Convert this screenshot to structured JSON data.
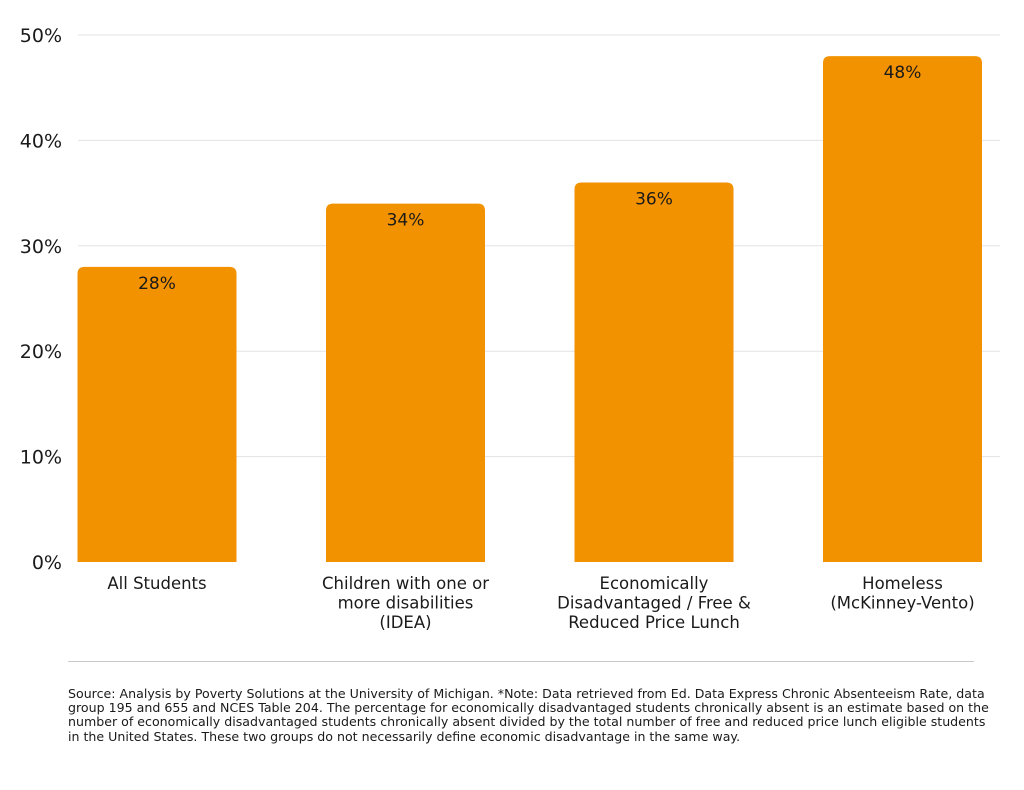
{
  "chart_data": {
    "type": "bar",
    "categories": [
      "All Students",
      "Children with one or more disabilities (IDEA)",
      "Economically Disadvantaged / Free & Reduced Price Lunch",
      "Homeless (McKinney-Vento)"
    ],
    "category_lines": [
      [
        "All Students"
      ],
      [
        "Children with one or",
        "more disabilities",
        "(IDEA)"
      ],
      [
        "Economically",
        "Disadvantaged / Free &",
        "Reduced Price Lunch"
      ],
      [
        "Homeless",
        "(McKinney-Vento)"
      ]
    ],
    "values": [
      28,
      34,
      36,
      48
    ],
    "data_labels": [
      "28%",
      "34%",
      "36%",
      "48%"
    ],
    "ylim": [
      0,
      50
    ],
    "yticks": [
      0,
      10,
      20,
      30,
      40,
      50
    ],
    "ytick_labels": [
      "0%",
      "10%",
      "20%",
      "30%",
      "40%",
      "50%"
    ],
    "title": "",
    "xlabel": "",
    "ylabel": "",
    "grid": true,
    "bar_color": "#F39200",
    "grid_color": "#e3e3e3"
  },
  "source_note": "Source: Analysis by Poverty Solutions at the University of Michigan. *Note: Data retrieved from Ed. Data Express Chronic Absenteeism Rate, data group 195 and 655 and NCES Table 204. The percentage for economically disadvantaged students chronically absent is an estimate based on the number of economically disadvantaged students chronically absent divided by the total number of free and reduced price lunch eligible students in the United States. These two groups do not necessarily define economic disadvantage in the same way."
}
